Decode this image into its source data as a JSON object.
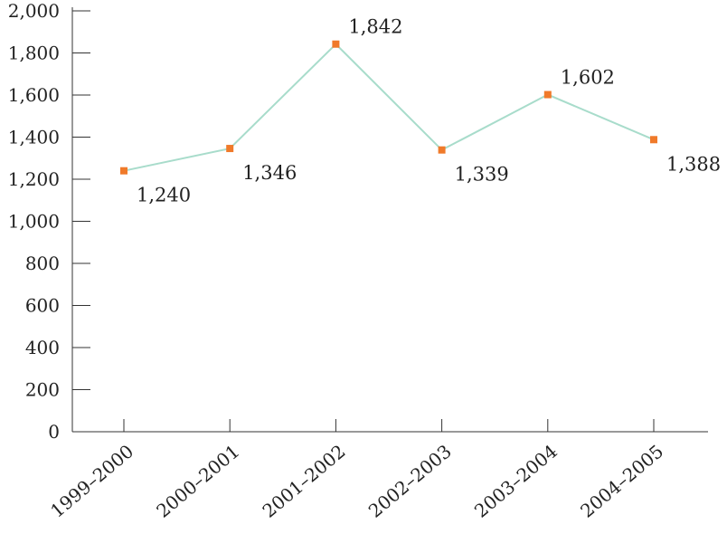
{
  "chart_data": {
    "type": "line",
    "title": "",
    "xlabel": "",
    "ylabel": "",
    "categories": [
      "1999–2000",
      "2000–2001",
      "2001–2002",
      "2002–2003",
      "2003–2004",
      "2004–2005"
    ],
    "series": [
      {
        "values": [
          1240,
          1346,
          1842,
          1339,
          1602,
          1388
        ]
      }
    ],
    "data_labels": [
      "1,240",
      "1,346",
      "1,842",
      "1,339",
      "1,602",
      "1,388"
    ],
    "ylim": [
      0,
      2000
    ],
    "yticks": [
      0,
      200,
      400,
      600,
      800,
      1000,
      1200,
      1400,
      1600,
      1800,
      2000
    ],
    "ytick_labels": [
      "0",
      "200",
      "400",
      "600",
      "800",
      "1,000",
      "1,200",
      "1,400",
      "1,600",
      "1,800",
      "2,000"
    ],
    "grid": false,
    "legend": "none",
    "colors": {
      "line": "#a8dccb",
      "marker": "#f07a2a",
      "axis": "#333333",
      "text": "#222222"
    }
  }
}
